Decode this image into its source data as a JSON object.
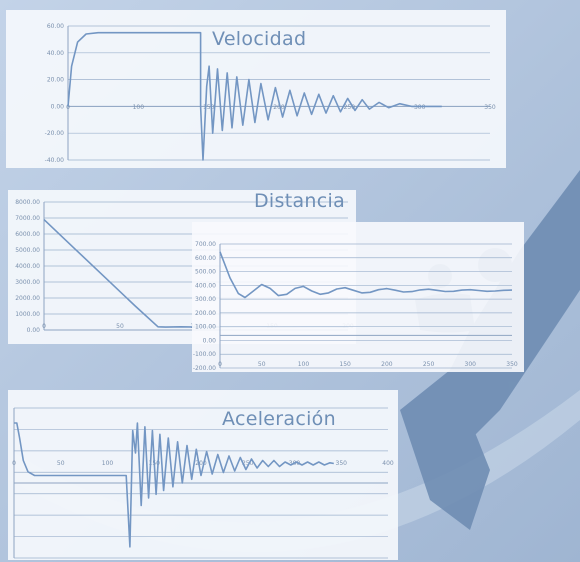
{
  "colors": {
    "background": "#b4c6de",
    "panel": "#f4f7fc",
    "line": "#7396c3",
    "title": "#6f8fb6",
    "silhouette": "#6f8db3"
  },
  "decoration": {
    "silhouette": "figure-with-crane-silhouette-icon"
  },
  "chart_data": [
    {
      "type": "line",
      "title": "Velocidad",
      "xlabel": "",
      "ylabel": "",
      "xlim": [
        0,
        350
      ],
      "ylim": [
        -40,
        60
      ],
      "x_ticks": [
        "0",
        "100",
        "150",
        "200",
        "250",
        "300",
        "350"
      ],
      "y_ticks": [
        "60.00",
        "40.00",
        "20.00",
        "0.00",
        "-20.00",
        "-40.00"
      ],
      "grid": true,
      "series": [
        {
          "values": [
            [
              0,
              0
            ],
            [
              3,
              30
            ],
            [
              8,
              48
            ],
            [
              15,
              54
            ],
            [
              25,
              55
            ],
            [
              60,
              55
            ],
            [
              110,
              55
            ],
            [
              110,
              0
            ],
            [
              112,
              -40
            ],
            [
              115,
              15
            ],
            [
              117,
              30
            ],
            [
              120,
              -20
            ],
            [
              124,
              28
            ],
            [
              128,
              -18
            ],
            [
              132,
              25
            ],
            [
              136,
              -16
            ],
            [
              140,
              22
            ],
            [
              145,
              -14
            ],
            [
              150,
              20
            ],
            [
              155,
              -12
            ],
            [
              160,
              17
            ],
            [
              166,
              -10
            ],
            [
              172,
              14
            ],
            [
              178,
              -8
            ],
            [
              184,
              12
            ],
            [
              190,
              -7
            ],
            [
              196,
              10
            ],
            [
              202,
              -6
            ],
            [
              208,
              9
            ],
            [
              214,
              -5
            ],
            [
              220,
              8
            ],
            [
              226,
              -4
            ],
            [
              232,
              6
            ],
            [
              238,
              -3
            ],
            [
              244,
              5
            ],
            [
              250,
              -2
            ],
            [
              258,
              3
            ],
            [
              266,
              -1
            ],
            [
              275,
              2
            ],
            [
              285,
              0
            ],
            [
              300,
              0
            ],
            [
              310,
              0
            ]
          ]
        }
      ]
    },
    {
      "type": "line",
      "title": "Distancia",
      "xlabel": "",
      "ylabel": "",
      "xlim": [
        0,
        200
      ],
      "ylim": [
        0,
        8000
      ],
      "x_ticks": [
        "0",
        "50",
        "100",
        "150",
        "200"
      ],
      "y_ticks": [
        "8000.00",
        "7000.00",
        "6000.00",
        "5000.00",
        "4000.00",
        "3000.00",
        "2000.00",
        "1000.00",
        "0.00"
      ],
      "grid": true,
      "series": [
        {
          "values": [
            [
              0,
              6900
            ],
            [
              20,
              5100
            ],
            [
              40,
              3300
            ],
            [
              60,
              1500
            ],
            [
              75,
              200
            ],
            [
              80,
              180
            ],
            [
              90,
              200
            ],
            [
              100,
              180
            ],
            [
              110,
              200
            ],
            [
              120,
              180
            ],
            [
              140,
              200
            ],
            [
              160,
              190
            ],
            [
              180,
              200
            ],
            [
              200,
              190
            ]
          ]
        }
      ]
    },
    {
      "type": "line",
      "title": "",
      "xlabel": "",
      "ylabel": "",
      "xlim": [
        0,
        350
      ],
      "ylim": [
        -250,
        700
      ],
      "x_ticks": [
        "0",
        "50",
        "100",
        "150",
        "200",
        "250",
        "300",
        "350"
      ],
      "y_ticks": [
        "700.00",
        "600.00",
        "500.00",
        "400.00",
        "300.00",
        "200.00",
        "100.00",
        "0.00",
        "-100.00",
        "-200.00"
      ],
      "grid": true,
      "series": [
        {
          "values": [
            [
              0,
              640
            ],
            [
              12,
              440
            ],
            [
              22,
              320
            ],
            [
              30,
              290
            ],
            [
              40,
              340
            ],
            [
              50,
              390
            ],
            [
              60,
              360
            ],
            [
              70,
              305
            ],
            [
              80,
              315
            ],
            [
              90,
              360
            ],
            [
              100,
              375
            ],
            [
              110,
              340
            ],
            [
              120,
              315
            ],
            [
              130,
              325
            ],
            [
              140,
              355
            ],
            [
              150,
              365
            ],
            [
              160,
              345
            ],
            [
              170,
              325
            ],
            [
              180,
              330
            ],
            [
              190,
              350
            ],
            [
              200,
              358
            ],
            [
              210,
              346
            ],
            [
              220,
              332
            ],
            [
              230,
              335
            ],
            [
              240,
              348
            ],
            [
              250,
              354
            ],
            [
              260,
              345
            ],
            [
              270,
              336
            ],
            [
              280,
              338
            ],
            [
              290,
              347
            ],
            [
              300,
              350
            ],
            [
              310,
              344
            ],
            [
              320,
              338
            ],
            [
              330,
              340
            ],
            [
              340,
              345
            ],
            [
              350,
              347
            ]
          ]
        }
      ]
    },
    {
      "type": "line",
      "title": "Aceleración",
      "xlabel": "",
      "ylabel": "",
      "xlim": [
        0,
        400
      ],
      "ylim": [
        -100,
        100
      ],
      "x_ticks": [
        "0",
        "50",
        "100",
        "150",
        "200",
        "250",
        "300",
        "350",
        "400"
      ],
      "y_ticks": [],
      "grid": true,
      "series": [
        {
          "values": [
            [
              0,
              80
            ],
            [
              3,
              80
            ],
            [
              6,
              60
            ],
            [
              10,
              30
            ],
            [
              15,
              15
            ],
            [
              22,
              10
            ],
            [
              40,
              10
            ],
            [
              120,
              10
            ],
            [
              124,
              -85
            ],
            [
              127,
              70
            ],
            [
              130,
              40
            ],
            [
              132,
              80
            ],
            [
              136,
              -30
            ],
            [
              140,
              75
            ],
            [
              144,
              -20
            ],
            [
              148,
              70
            ],
            [
              152,
              -15
            ],
            [
              156,
              65
            ],
            [
              160,
              -10
            ],
            [
              165,
              60
            ],
            [
              170,
              -5
            ],
            [
              175,
              55
            ],
            [
              180,
              0
            ],
            [
              185,
              50
            ],
            [
              190,
              5
            ],
            [
              195,
              45
            ],
            [
              200,
              10
            ],
            [
              206,
              42
            ],
            [
              212,
              12
            ],
            [
              218,
              38
            ],
            [
              224,
              14
            ],
            [
              230,
              36
            ],
            [
              236,
              16
            ],
            [
              242,
              34
            ],
            [
              248,
              18
            ],
            [
              254,
              32
            ],
            [
              260,
              20
            ],
            [
              266,
              30
            ],
            [
              272,
              22
            ],
            [
              278,
              30
            ],
            [
              284,
              22
            ],
            [
              290,
              28
            ],
            [
              296,
              24
            ],
            [
              302,
              28
            ],
            [
              308,
              24
            ],
            [
              314,
              28
            ],
            [
              320,
              24
            ],
            [
              326,
              28
            ],
            [
              332,
              24
            ],
            [
              338,
              27
            ],
            [
              342,
              26
            ]
          ]
        }
      ]
    }
  ]
}
